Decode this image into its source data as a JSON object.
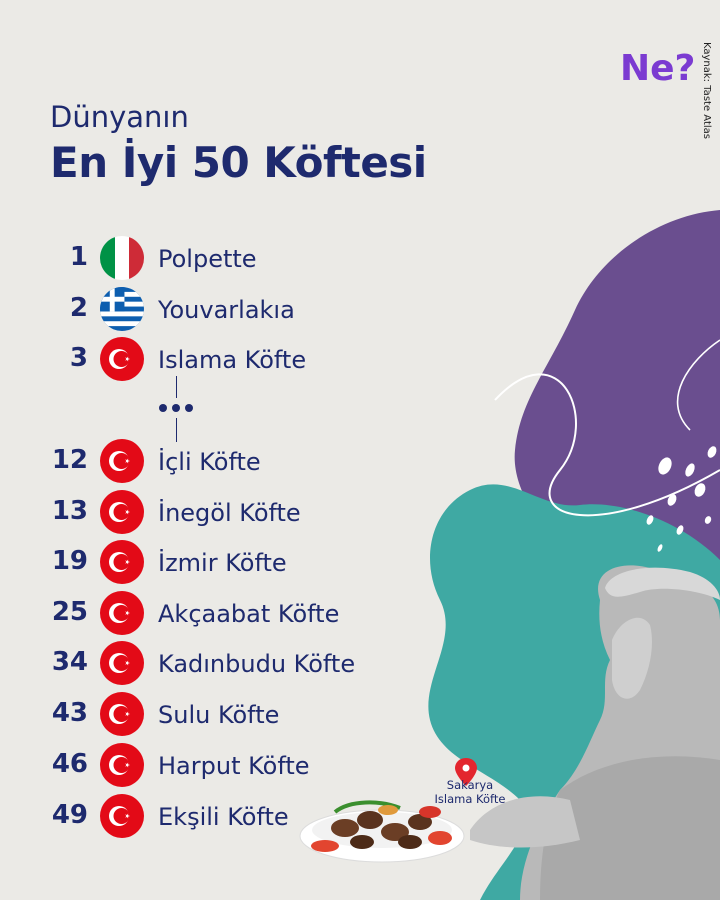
{
  "header": {
    "subtitle": "Dünyanın",
    "title": "En İyi 50 Köftesi",
    "logo": "Ne?",
    "source": "Kaynak: Taste Atlas"
  },
  "list": [
    {
      "rank": "1",
      "name": "Polpette",
      "flag": "italy-flag-icon"
    },
    {
      "rank": "2",
      "name": "Youvarlakıa",
      "flag": "greece-flag-icon"
    },
    {
      "rank": "3",
      "name": "Islama Köfte",
      "flag": "turkey-flag-icon"
    },
    {
      "rank": "12",
      "name": "İçli Köfte",
      "flag": "turkey-flag-icon"
    },
    {
      "rank": "13",
      "name": "İnegöl Köfte",
      "flag": "turkey-flag-icon"
    },
    {
      "rank": "19",
      "name": "İzmir Köfte",
      "flag": "turkey-flag-icon"
    },
    {
      "rank": "25",
      "name": "Akçaabat Köfte",
      "flag": "turkey-flag-icon"
    },
    {
      "rank": "34",
      "name": "Kadınbudu Köfte",
      "flag": "turkey-flag-icon"
    },
    {
      "rank": "43",
      "name": "Sulu Köfte",
      "flag": "turkey-flag-icon"
    },
    {
      "rank": "46",
      "name": "Harput Köfte",
      "flag": "turkey-flag-icon"
    },
    {
      "rank": "49",
      "name": "Ekşili Köfte",
      "flag": "turkey-flag-icon"
    }
  ],
  "pin": {
    "line1": "Sakarya",
    "line2": "Islama Köfte",
    "icon": "location-pin-icon"
  },
  "colors": {
    "navy": "#1e2a6e",
    "purple": "#6a4e8f",
    "teal": "#3fa9a3",
    "highlight": "#f0a98a",
    "flag_red": "#e30a17"
  }
}
